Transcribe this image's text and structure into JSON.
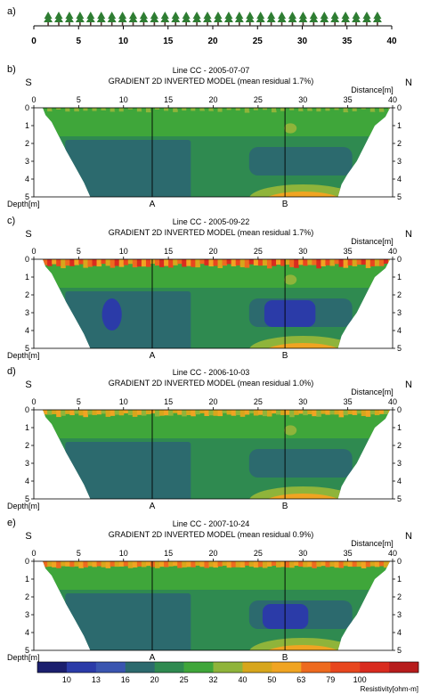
{
  "figure": {
    "panel_a": {
      "label": "a)",
      "ticks": [
        "0",
        "5",
        "10",
        "15",
        "20",
        "25",
        "30",
        "35",
        "40"
      ],
      "electrode_count": 32
    },
    "sections": [
      {
        "id": "b",
        "label": "b)",
        "title": "Line CC - 2005-07-07",
        "subtitle": "GRADIENT 2D INVERTED MODEL (mean residual 1.7%)",
        "anomaly": "none"
      },
      {
        "id": "c",
        "label": "c)",
        "title": "Line CC - 2005-09-22",
        "subtitle": "GRADIENT 2D INVERTED MODEL (mean residual 1.7%)",
        "anomaly": "two-lows"
      },
      {
        "id": "d",
        "label": "d)",
        "title": "Line CC - 2006-10-03",
        "subtitle": "GRADIENT 2D INVERTED MODEL (mean residual 1.0%)",
        "anomaly": "none"
      },
      {
        "id": "e",
        "label": "e)",
        "title": "Line CC - 2007-10-24",
        "subtitle": "GRADIENT 2D INVERTED MODEL (mean residual 0.9%)",
        "anomaly": "one-low"
      }
    ],
    "side_labels": {
      "left": "S",
      "right": "N"
    },
    "distance_label": "Distance[m]",
    "depth_label": "Depth[m]",
    "x_ticks": [
      "0",
      "5",
      "10",
      "15",
      "20",
      "25",
      "30",
      "35",
      "40"
    ],
    "depth_ticks": [
      "0",
      "1",
      "2",
      "3",
      "4",
      "5"
    ],
    "markers": [
      {
        "label": "A",
        "x_m": 13.2
      },
      {
        "label": "B",
        "x_m": 28.0
      }
    ],
    "colorbar": {
      "unit_label": "Resistivity[ohm-m]",
      "boundaries": [
        "10",
        "13",
        "16",
        "20",
        "25",
        "32",
        "40",
        "50",
        "63",
        "79",
        "100"
      ],
      "colors": [
        "#1b1f6e",
        "#2b3ba8",
        "#3a55b0",
        "#2c6a6e",
        "#2f8a50",
        "#3fa63a",
        "#8fb43a",
        "#d7a61c",
        "#f0a422",
        "#ee6a1f",
        "#e8461e",
        "#d92b1f",
        "#b71c1c"
      ]
    }
  },
  "chart_data": {
    "type": "heatmap",
    "xlabel": "Distance[m]",
    "ylabel": "Depth[m]",
    "xlim": [
      0,
      40
    ],
    "ylim": [
      5,
      0
    ],
    "colorbar_label": "Resistivity[ohm-m]",
    "colorbar_ticks": [
      10,
      13,
      16,
      20,
      25,
      32,
      40,
      50,
      63,
      79,
      100
    ],
    "panels": [
      {
        "title": "Line CC - 2005-07-07",
        "subtitle": "GRADIENT 2D INVERTED MODEL (mean residual 1.7%)"
      },
      {
        "title": "Line CC - 2005-09-22",
        "subtitle": "GRADIENT 2D INVERTED MODEL (mean residual 1.7%)"
      },
      {
        "title": "Line CC - 2006-10-03",
        "subtitle": "GRADIENT 2D INVERTED MODEL (mean residual 1.0%)"
      },
      {
        "title": "Line CC - 2007-10-24",
        "subtitle": "GRADIENT 2D INVERTED MODEL (mean residual 0.9%)"
      }
    ],
    "markers": [
      {
        "label": "A",
        "x": 13.2
      },
      {
        "label": "B",
        "x": 28.0
      }
    ]
  }
}
